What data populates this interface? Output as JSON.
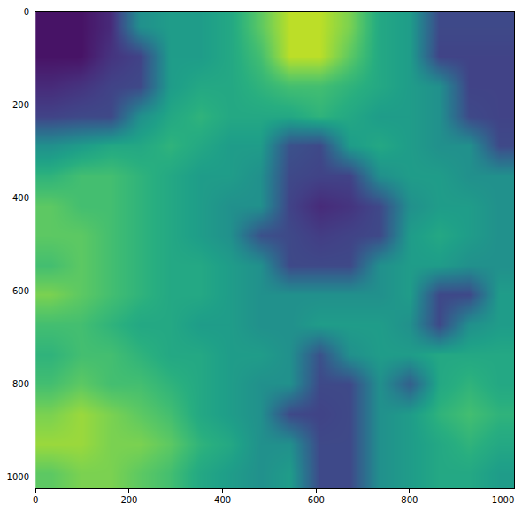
{
  "chart_data": {
    "type": "heatmap",
    "color": "viridis",
    "grid": false,
    "x": [
      32,
      96,
      160,
      224,
      288,
      352,
      416,
      480,
      544,
      608,
      672,
      736,
      800,
      864,
      928,
      992
    ],
    "y": [
      32,
      96,
      160,
      224,
      288,
      352,
      416,
      480,
      544,
      608,
      672,
      736,
      800,
      864,
      928,
      992
    ],
    "cells": [
      [
        0.05,
        0.05,
        0.12,
        0.5,
        0.55,
        0.55,
        0.6,
        0.75,
        0.9,
        0.9,
        0.8,
        0.6,
        0.55,
        0.22,
        0.22,
        0.22
      ],
      [
        0.05,
        0.05,
        0.15,
        0.2,
        0.55,
        0.55,
        0.6,
        0.7,
        0.9,
        0.9,
        0.75,
        0.6,
        0.55,
        0.2,
        0.2,
        0.2
      ],
      [
        0.12,
        0.15,
        0.2,
        0.22,
        0.55,
        0.6,
        0.6,
        0.65,
        0.7,
        0.7,
        0.65,
        0.6,
        0.55,
        0.5,
        0.2,
        0.2
      ],
      [
        0.2,
        0.22,
        0.22,
        0.5,
        0.6,
        0.65,
        0.6,
        0.6,
        0.6,
        0.65,
        0.6,
        0.55,
        0.55,
        0.5,
        0.22,
        0.2
      ],
      [
        0.5,
        0.55,
        0.6,
        0.6,
        0.65,
        0.6,
        0.55,
        0.55,
        0.25,
        0.22,
        0.55,
        0.6,
        0.55,
        0.5,
        0.5,
        0.22
      ],
      [
        0.65,
        0.7,
        0.7,
        0.65,
        0.6,
        0.55,
        0.55,
        0.5,
        0.22,
        0.2,
        0.2,
        0.5,
        0.55,
        0.55,
        0.5,
        0.5
      ],
      [
        0.75,
        0.7,
        0.7,
        0.65,
        0.6,
        0.55,
        0.5,
        0.5,
        0.2,
        0.12,
        0.15,
        0.22,
        0.5,
        0.55,
        0.55,
        0.5
      ],
      [
        0.75,
        0.75,
        0.7,
        0.65,
        0.6,
        0.55,
        0.5,
        0.25,
        0.22,
        0.18,
        0.2,
        0.22,
        0.55,
        0.6,
        0.55,
        0.5
      ],
      [
        0.7,
        0.75,
        0.7,
        0.65,
        0.6,
        0.6,
        0.55,
        0.5,
        0.22,
        0.22,
        0.22,
        0.5,
        0.55,
        0.55,
        0.5,
        0.5
      ],
      [
        0.8,
        0.75,
        0.7,
        0.65,
        0.6,
        0.6,
        0.55,
        0.5,
        0.5,
        0.5,
        0.5,
        0.5,
        0.55,
        0.22,
        0.22,
        0.55
      ],
      [
        0.7,
        0.7,
        0.65,
        0.6,
        0.6,
        0.55,
        0.55,
        0.5,
        0.5,
        0.55,
        0.55,
        0.55,
        0.5,
        0.22,
        0.5,
        0.55
      ],
      [
        0.65,
        0.7,
        0.7,
        0.65,
        0.6,
        0.6,
        0.55,
        0.55,
        0.5,
        0.25,
        0.5,
        0.55,
        0.55,
        0.6,
        0.6,
        0.6
      ],
      [
        0.7,
        0.75,
        0.7,
        0.7,
        0.65,
        0.6,
        0.55,
        0.5,
        0.5,
        0.22,
        0.22,
        0.5,
        0.3,
        0.6,
        0.65,
        0.6
      ],
      [
        0.8,
        0.85,
        0.8,
        0.75,
        0.7,
        0.6,
        0.55,
        0.5,
        0.22,
        0.2,
        0.22,
        0.5,
        0.55,
        0.65,
        0.7,
        0.65
      ],
      [
        0.85,
        0.85,
        0.8,
        0.8,
        0.75,
        0.65,
        0.6,
        0.5,
        0.5,
        0.22,
        0.22,
        0.5,
        0.55,
        0.6,
        0.65,
        0.6
      ],
      [
        0.75,
        0.8,
        0.8,
        0.75,
        0.7,
        0.6,
        0.55,
        0.5,
        0.55,
        0.22,
        0.22,
        0.5,
        0.55,
        0.6,
        0.6,
        0.55
      ]
    ],
    "zlim": [
      0,
      1
    ],
    "xlim": [
      -0.5,
      1023.5
    ],
    "ylim": [
      1023.5,
      -0.5
    ],
    "xticks": [
      0,
      200,
      400,
      600,
      800,
      1000
    ],
    "yticks": [
      0,
      200,
      400,
      600,
      800,
      1000
    ]
  }
}
